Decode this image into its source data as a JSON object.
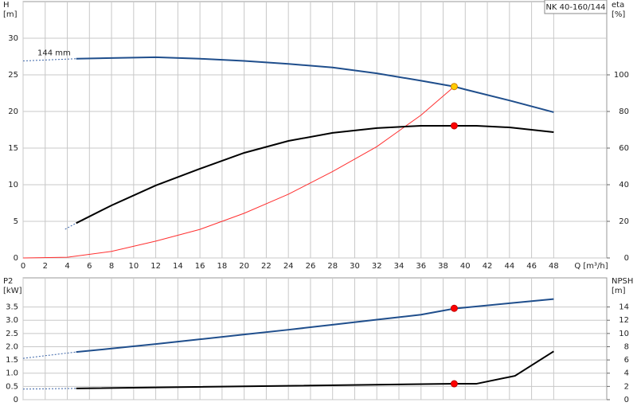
{
  "chart_data": [
    {
      "type": "line",
      "title": "NK 40-160/144",
      "xlabel": "Q [m³/h]",
      "ylabel": "H",
      "yunit": "[m]",
      "y2label": "eta",
      "y2unit": "[%]",
      "annotations": [
        {
          "text": "144 mm",
          "x": 0,
          "y": 26.9
        }
      ],
      "xlim": [
        0,
        52.8
      ],
      "xticks": [
        0,
        2,
        4,
        6,
        8,
        10,
        12,
        14,
        16,
        18,
        20,
        22,
        24,
        26,
        28,
        30,
        32,
        34,
        36,
        38,
        40,
        42,
        44,
        46,
        48
      ],
      "ylim": [
        0,
        35
      ],
      "yticks": [
        0,
        5,
        10,
        15,
        20,
        25,
        30
      ],
      "y2lim": [
        0,
        140
      ],
      "y2ticks": [
        0,
        20,
        40,
        60,
        80,
        100
      ],
      "grid": true,
      "series": [
        {
          "color": "#3a64a8",
          "dash": true,
          "width": 1,
          "x": [
            0,
            4.8
          ],
          "values": [
            26.9,
            27.2
          ]
        },
        {
          "color": "#1f4e8c",
          "dash": false,
          "width": 2,
          "x": [
            4.8,
            8,
            12,
            16,
            20,
            24,
            28,
            32,
            36,
            39,
            40,
            44,
            48
          ],
          "values": [
            27.2,
            27.3,
            27.4,
            27.2,
            26.9,
            26.5,
            26.0,
            25.2,
            24.2,
            23.4,
            23.0,
            21.5,
            19.9
          ]
        },
        {
          "color": "#ff3030",
          "dash": false,
          "width": 1,
          "x": [
            0,
            4,
            8,
            12,
            16,
            20,
            24,
            28,
            32,
            36,
            39
          ],
          "values": [
            0,
            0.1,
            0.9,
            2.3,
            3.9,
            6.1,
            8.7,
            11.8,
            15.2,
            19.5,
            23.4
          ]
        },
        {
          "color": "#3a64a8",
          "dash": true,
          "width": 1,
          "axis": "y2",
          "x": [
            3.8,
            4.8
          ],
          "values": [
            15.7,
            19
          ]
        },
        {
          "color": "#000000",
          "dash": false,
          "width": 2,
          "axis": "y2",
          "x": [
            4.8,
            8,
            12,
            16,
            20,
            24,
            28,
            32,
            36,
            39,
            41,
            44,
            48
          ],
          "values": [
            19,
            28.7,
            39.6,
            48.7,
            57.4,
            63.9,
            68.3,
            70.9,
            72.2,
            72.2,
            72.2,
            71.3,
            68.7
          ]
        }
      ],
      "points": [
        {
          "x": 39,
          "y": 23.4,
          "color": "#ffcc00"
        },
        {
          "x": 39,
          "y": 72.2,
          "color": "#ff0000",
          "axis": "y2"
        }
      ]
    },
    {
      "type": "line",
      "ylabel": "P2",
      "yunit": "[kW]",
      "y2label": "NPSH",
      "y2unit": "[m]",
      "xlim": [
        0,
        52.8
      ],
      "ylim": [
        0,
        4.6
      ],
      "yticks": [
        0,
        0.5,
        {
          "value": 1,
          "label": "1.0"
        },
        1.5,
        {
          "value": 2,
          "label": "2.0"
        },
        2.5,
        {
          "value": 3,
          "label": "3.0"
        },
        3.5
      ],
      "y2lim": [
        0,
        18.4
      ],
      "y2ticks": [
        0,
        2,
        4,
        6,
        8,
        10,
        12,
        14
      ],
      "grid": true,
      "series": [
        {
          "color": "#3a64a8",
          "dash": true,
          "width": 1,
          "x": [
            0,
            4.8
          ],
          "values": [
            1.56,
            1.8
          ]
        },
        {
          "color": "#1f4e8c",
          "dash": false,
          "width": 2,
          "x": [
            4.8,
            8,
            12,
            16,
            20,
            24,
            28,
            32,
            36,
            39,
            44,
            48
          ],
          "values": [
            1.8,
            1.93,
            2.1,
            2.28,
            2.46,
            2.64,
            2.83,
            3.02,
            3.21,
            3.44,
            3.64,
            3.8
          ]
        },
        {
          "color": "#3a64a8",
          "dash": true,
          "width": 1,
          "axis": "y2",
          "x": [
            0,
            4.8
          ],
          "values": [
            1.6,
            1.7
          ]
        },
        {
          "color": "#000000",
          "dash": false,
          "width": 2,
          "axis": "y2",
          "x": [
            4.8,
            39,
            41,
            44.5,
            48
          ],
          "values": [
            1.7,
            2.4,
            2.4,
            3.6,
            7.3
          ]
        }
      ],
      "points": [
        {
          "x": 39,
          "y": 3.45,
          "color": "#ff0000"
        },
        {
          "x": 39,
          "y": 2.4,
          "color": "#ff0000",
          "axis": "y2"
        }
      ]
    }
  ]
}
